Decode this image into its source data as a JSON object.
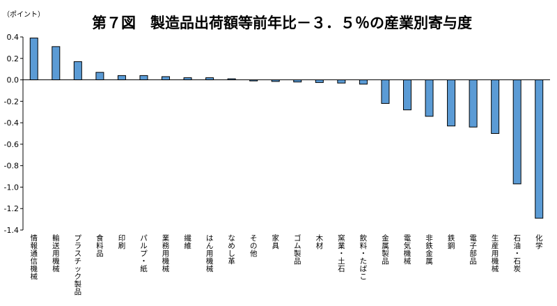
{
  "chart_data": {
    "type": "bar",
    "title": "第７図　製造品出荷額等前年比－３．５％の産業別寄与度",
    "unit_label": "（ポイント）",
    "xlabel": "",
    "ylabel": "（ポイント）",
    "ylim": [
      -1.4,
      0.4
    ],
    "yticks": [
      0.4,
      0.2,
      0.0,
      -0.2,
      -0.4,
      -0.6,
      -0.8,
      -1.0,
      -1.2,
      -1.4
    ],
    "ytick_labels": [
      "0.4",
      "0.2",
      "0.0",
      "-0.2",
      "-0.4",
      "-0.6",
      "-0.8",
      "-1.0",
      "-1.2",
      "-1.4"
    ],
    "grid": false,
    "legend": "none",
    "bar_color": "#5B9BD5",
    "categories": [
      "情報通信機械",
      "輸送用機械",
      "プラスチック製品",
      "食料品",
      "印刷",
      "パルプ・紙",
      "業務用機械",
      "繊維",
      "はん用機械",
      "なめし革",
      "その他",
      "家具",
      "ゴム製品",
      "木材",
      "窯業・土石",
      "飲料・たばこ",
      "金属製品",
      "電気機械",
      "非鉄金属",
      "鉄鋼",
      "電子部品",
      "生産用機械",
      "石油・石炭",
      "化学"
    ],
    "values": [
      0.39,
      0.31,
      0.17,
      0.07,
      0.04,
      0.04,
      0.03,
      0.02,
      0.02,
      0.01,
      -0.01,
      -0.015,
      -0.02,
      -0.025,
      -0.03,
      -0.04,
      -0.22,
      -0.28,
      -0.34,
      -0.43,
      -0.44,
      -0.5,
      -0.97,
      -1.29
    ]
  }
}
